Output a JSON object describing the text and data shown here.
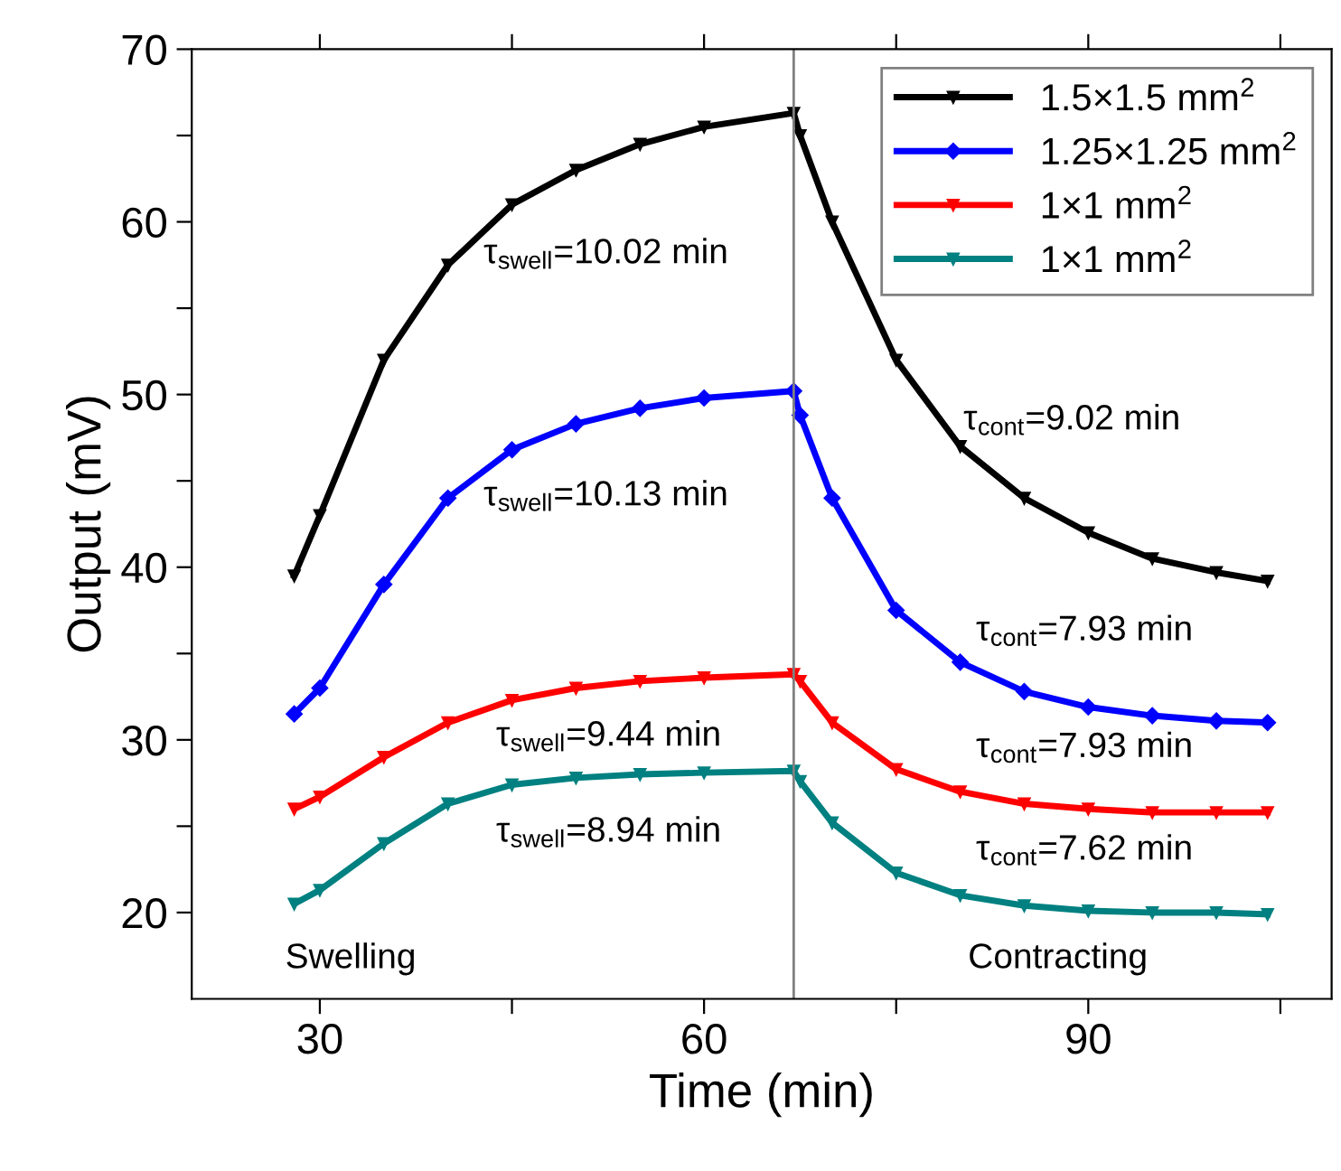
{
  "chart_data": {
    "type": "line",
    "xlabel": "Time (min)",
    "ylabel": "Output (mV)",
    "xlim": [
      20,
      109
    ],
    "xticks": [
      30,
      {
        "value": 45,
        "label": null
      },
      60,
      {
        "value": 75,
        "label": null
      },
      90,
      {
        "value": 105,
        "label": null
      }
    ],
    "ylim": [
      15,
      70
    ],
    "yticks": [
      20,
      {
        "value": 25,
        "label": null
      },
      30,
      {
        "value": 35,
        "label": null
      },
      40,
      {
        "value": 45,
        "label": null
      },
      50,
      {
        "value": 55,
        "label": null
      },
      60,
      {
        "value": 65,
        "label": null
      },
      70
    ],
    "x": [
      28,
      30,
      35,
      40,
      45,
      50,
      55,
      60,
      67,
      67.5,
      70,
      75,
      80,
      85,
      90,
      95,
      100,
      104
    ],
    "series": [
      {
        "name": "1.5×1.5 mm$^{2}$",
        "color": "#000000",
        "marker": "triangle",
        "values": [
          39.5,
          43,
          52,
          57.5,
          61,
          63,
          64.5,
          65.5,
          66.3,
          65,
          60,
          52,
          47,
          44,
          42,
          40.5,
          39.7,
          39.2
        ]
      },
      {
        "name": "1.25×1.25 mm$^{2}$",
        "color": "#0000ff",
        "marker": "diamond",
        "values": [
          31.5,
          33,
          39,
          44,
          46.8,
          48.3,
          49.2,
          49.8,
          50.2,
          48.8,
          44,
          37.5,
          34.5,
          32.8,
          31.9,
          31.4,
          31.1,
          31
        ]
      },
      {
        "name": "1×1 mm$^{2}$",
        "color": "#ff0000",
        "marker": "triangle",
        "values": [
          26,
          26.7,
          29,
          31,
          32.3,
          33,
          33.4,
          33.6,
          33.8,
          33.4,
          31,
          28.3,
          27,
          26.3,
          26,
          25.8,
          25.8,
          25.8
        ]
      },
      {
        "name": "1×1 mm$^{2}$",
        "color": "#008080",
        "marker": "triangle",
        "values": [
          20.5,
          21.3,
          24,
          26.3,
          27.4,
          27.8,
          28,
          28.1,
          28.2,
          27.6,
          25.2,
          22.3,
          21,
          20.4,
          20.1,
          20,
          20,
          19.9
        ]
      }
    ],
    "ref_lines": [
      {
        "axis": "x",
        "value": 67,
        "color": "#808080"
      }
    ],
    "annotations": [
      "τ$_{swell}$=10.02 min",
      "τ$_{swell}$=10.13 min",
      "τ$_{swell}$=9.44 min",
      "τ$_{swell}$=8.94 min",
      "τ$_{cont}$=9.02 min",
      "τ$_{cont}$=7.93 min",
      "τ$_{cont}$=7.93 min",
      "τ$_{cont}$=7.62 min",
      "Swelling",
      "Contracting"
    ],
    "legend": "top right",
    "line_style": "solid"
  }
}
